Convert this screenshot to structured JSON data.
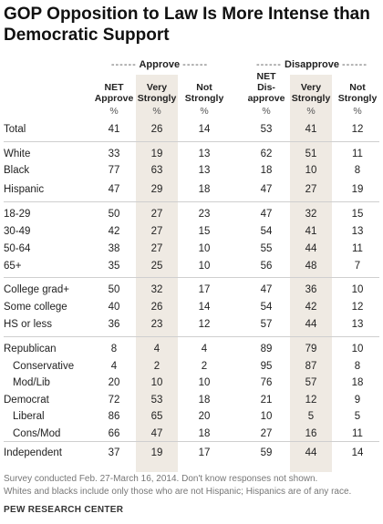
{
  "title": "GOP Opposition to Law Is More Intense than Democratic Support",
  "groups": {
    "approve": "Approve",
    "disapprove": "Disapprove",
    "dashes": "------"
  },
  "columns": {
    "net_approve": [
      "NET",
      "Approve"
    ],
    "approve_very": [
      "Very",
      "Strongly"
    ],
    "approve_not": [
      "Not",
      "Strongly"
    ],
    "net_disapprove": [
      "NET",
      "Dis-",
      "approve"
    ],
    "disapprove_very": [
      "Very",
      "Strongly"
    ],
    "disapprove_not": [
      "Not",
      "Strongly"
    ],
    "unit": "%"
  },
  "rows": [
    {
      "label": "Total",
      "indent": false,
      "values": [
        "41",
        "26",
        "14",
        "53",
        "41",
        "12"
      ]
    },
    {
      "label": "White",
      "indent": false,
      "values": [
        "33",
        "19",
        "13",
        "62",
        "51",
        "11"
      ]
    },
    {
      "label": "Black",
      "indent": false,
      "values": [
        "77",
        "63",
        "13",
        "18",
        "10",
        "8"
      ]
    },
    {
      "label": "Hispanic",
      "indent": false,
      "values": [
        "47",
        "29",
        "18",
        "47",
        "27",
        "19"
      ]
    },
    {
      "label": "18-29",
      "indent": false,
      "values": [
        "50",
        "27",
        "23",
        "47",
        "32",
        "15"
      ]
    },
    {
      "label": "30-49",
      "indent": false,
      "values": [
        "42",
        "27",
        "15",
        "54",
        "41",
        "13"
      ]
    },
    {
      "label": "50-64",
      "indent": false,
      "values": [
        "38",
        "27",
        "10",
        "55",
        "44",
        "11"
      ]
    },
    {
      "label": "65+",
      "indent": false,
      "values": [
        "35",
        "25",
        "10",
        "56",
        "48",
        "7"
      ]
    },
    {
      "label": "College grad+",
      "indent": false,
      "values": [
        "50",
        "32",
        "17",
        "47",
        "36",
        "10"
      ]
    },
    {
      "label": "Some college",
      "indent": false,
      "values": [
        "40",
        "26",
        "14",
        "54",
        "42",
        "12"
      ]
    },
    {
      "label": "HS or less",
      "indent": false,
      "values": [
        "36",
        "23",
        "12",
        "57",
        "44",
        "13"
      ]
    },
    {
      "label": "Republican",
      "indent": false,
      "values": [
        "8",
        "4",
        "4",
        "89",
        "79",
        "10"
      ]
    },
    {
      "label": "Conservative",
      "indent": true,
      "values": [
        "4",
        "2",
        "2",
        "95",
        "87",
        "8"
      ]
    },
    {
      "label": "Mod/Lib",
      "indent": true,
      "values": [
        "20",
        "10",
        "10",
        "76",
        "57",
        "18"
      ]
    },
    {
      "label": "Democrat",
      "indent": false,
      "values": [
        "72",
        "53",
        "18",
        "21",
        "12",
        "9"
      ]
    },
    {
      "label": "Liberal",
      "indent": true,
      "values": [
        "86",
        "65",
        "20",
        "10",
        "5",
        "5"
      ]
    },
    {
      "label": "Cons/Mod",
      "indent": true,
      "values": [
        "66",
        "47",
        "18",
        "27",
        "16",
        "11"
      ]
    },
    {
      "label": "Independent",
      "indent": false,
      "values": [
        "37",
        "19",
        "17",
        "59",
        "44",
        "14"
      ]
    }
  ],
  "notes": [
    "Survey conducted Feb. 27-March 16, 2014. Don't know responses not shown.",
    "Whites and blacks include only those who are not Hispanic; Hispanics are of any race."
  ],
  "source": "PEW RESEARCH CENTER",
  "colors": {
    "shade": "#efeae3",
    "rule": "#cfcfcf"
  }
}
